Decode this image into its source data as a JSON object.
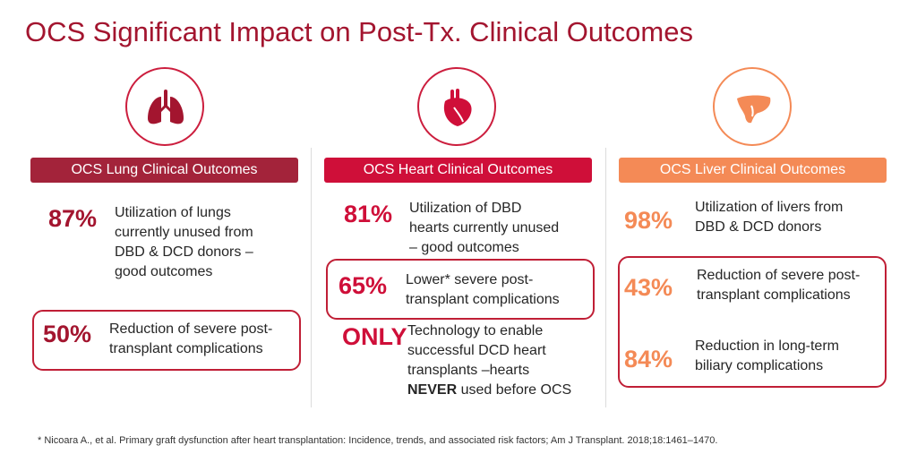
{
  "title": "OCS Significant Impact on Post-Tx. Clinical Outcomes",
  "icons": {
    "lung": "lungs-icon",
    "heart": "heart-icon",
    "liver": "liver-icon"
  },
  "colors": {
    "title": "#a3152f",
    "lung": "#a3233a",
    "heart": "#cf0f39",
    "liver": "#f48a56"
  },
  "lung": {
    "banner": "OCS Lung Clinical Outcomes",
    "stats": [
      {
        "value": "87%",
        "lines": [
          "Utilization of lungs",
          "currently unused from",
          "DBD & DCD donors –",
          "good outcomes"
        ]
      },
      {
        "value": "50%",
        "lines": [
          "Reduction of severe post-",
          "transplant complications"
        ]
      }
    ]
  },
  "heart": {
    "banner": "OCS Heart Clinical Outcomes",
    "stats": [
      {
        "value": "81%",
        "lines": [
          "Utilization of DBD",
          "hearts currently unused",
          "– good outcomes"
        ]
      },
      {
        "value": "65%",
        "lines": [
          "Lower* severe post-",
          "transplant complications"
        ]
      },
      {
        "value": "ONLY",
        "lines": [
          "Technology to enable",
          "successful DCD heart",
          "transplants –hearts"
        ],
        "bold_word": "NEVER",
        "last_line_rest": " used before OCS"
      }
    ]
  },
  "liver": {
    "banner": "OCS Liver Clinical Outcomes",
    "stats": [
      {
        "value": "98%",
        "lines": [
          "Utilization of livers from",
          "DBD & DCD donors"
        ]
      },
      {
        "value": "43%",
        "lines": [
          "Reduction of severe post-",
          "transplant complications"
        ]
      },
      {
        "value": "84%",
        "lines": [
          "Reduction in long-term",
          "biliary complications"
        ]
      }
    ]
  },
  "footnote": "* Nicoara A., et al. Primary graft dysfunction after heart transplantation: Incidence, trends, and associated risk factors; Am J Transplant. 2018;18:1461–1470."
}
